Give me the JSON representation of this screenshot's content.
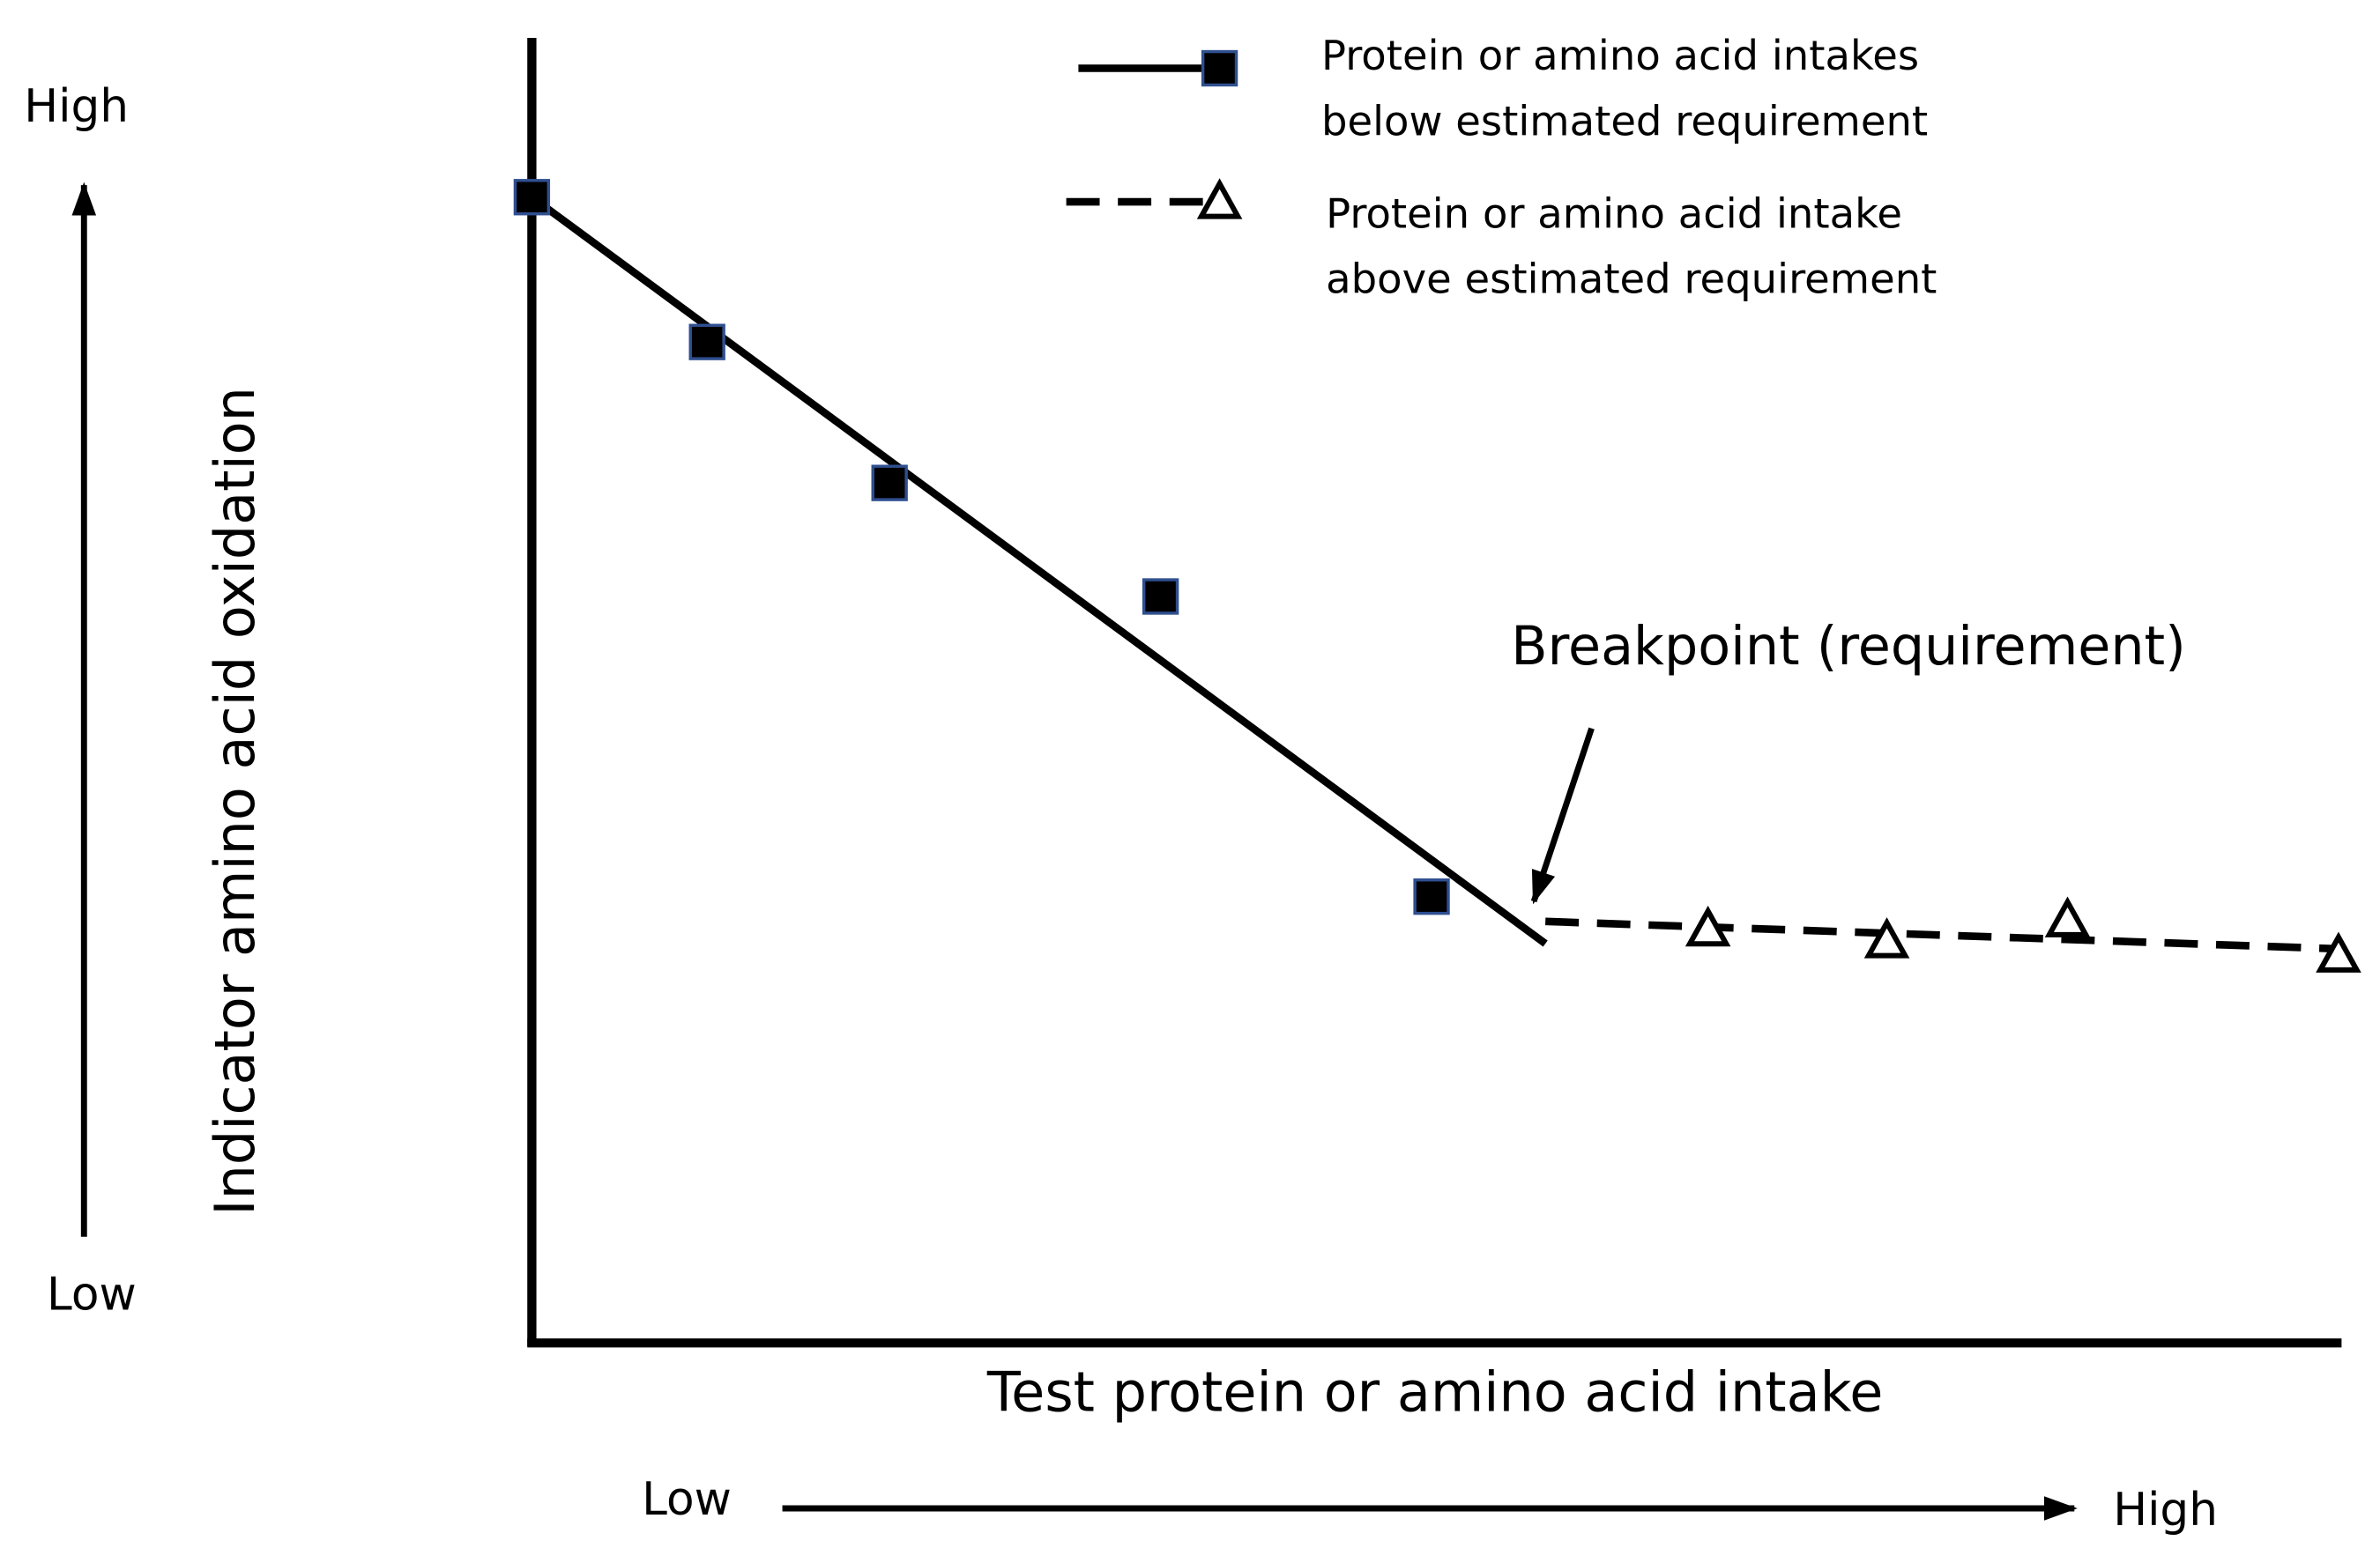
{
  "chart_data": {
    "type": "scatter",
    "x_label": "Test protein or amino acid intake",
    "y_label": "Indicator amino acid oxidation",
    "x_axis_low": "Low",
    "x_axis_high": "High",
    "y_axis_low": "Low",
    "y_axis_high": "High",
    "annotation": "Breakpoint (requirement)",
    "xlim": [
      0,
      100
    ],
    "ylim": [
      0,
      100
    ],
    "series": [
      {
        "name": "Protein or amino acid intakes below estimated requirement",
        "color": "#000000",
        "marker": "square",
        "line": "solid",
        "x": [
          0,
          9.7,
          19.8,
          34.8,
          49.8
        ],
        "values": [
          87.8,
          76.7,
          65.9,
          57.2,
          34.2
        ],
        "fit_x": [
          0,
          56.1
        ],
        "fit_values": [
          87.8,
          30.6
        ]
      },
      {
        "name": "Protein or amino acid intake above estimated requirement",
        "color": "#000000",
        "marker": "triangle",
        "line": "dashed",
        "x": [
          65.1,
          75.0,
          85.0,
          100
        ],
        "values": [
          31.7,
          30.8,
          32.4,
          29.7
        ],
        "fit_x": [
          56.1,
          100
        ],
        "fit_values": [
          32.3,
          30.2
        ]
      }
    ]
  }
}
